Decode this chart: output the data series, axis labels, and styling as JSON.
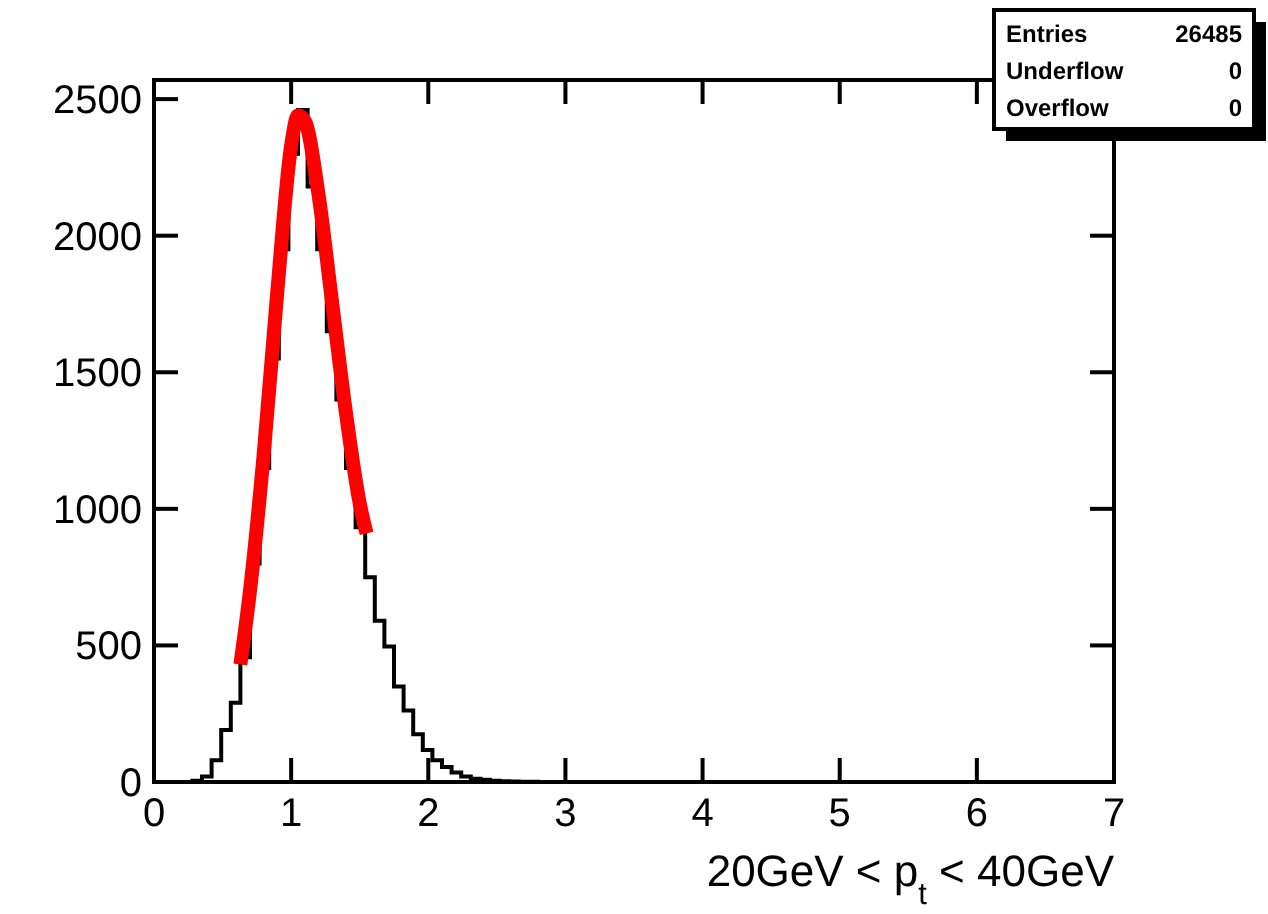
{
  "chart_data": {
    "type": "histogram",
    "xlabel": "20GeV < p$_{t}$ < 40GeV",
    "bins": [
      0,
      0.07,
      0.14,
      0.21,
      0.28,
      0.35,
      0.42,
      0.49,
      0.56,
      0.63,
      0.7,
      0.77,
      0.84,
      0.91,
      0.98,
      1.05,
      1.12,
      1.19,
      1.26,
      1.33,
      1.4,
      1.47,
      1.54,
      1.61,
      1.68,
      1.75,
      1.82,
      1.89,
      1.96,
      2.03,
      2.1,
      2.17,
      2.24,
      2.31,
      2.38,
      2.45,
      2.52,
      2.59,
      2.66,
      2.73,
      2.8,
      2.87
    ],
    "values": [
      0,
      0,
      0,
      0,
      5,
      20,
      80,
      190,
      290,
      457,
      800,
      1150,
      1550,
      1950,
      2300,
      2460,
      2180,
      1950,
      1650,
      1400,
      1150,
      933,
      750,
      590,
      496,
      350,
      262,
      175,
      117,
      80,
      55,
      35,
      20,
      12,
      8,
      5,
      3,
      2,
      1,
      1,
      0
    ],
    "color": "#000000",
    "series": [
      {
        "type": "line",
        "color": "#ff0000",
        "x": [
          0.63,
          0.7,
          0.8,
          0.9,
          1.0,
          1.05,
          1.1,
          1.2,
          1.3,
          1.4,
          1.5,
          1.55
        ],
        "values": [
          430,
          700,
          1200,
          1800,
          2330,
          2440,
          2420,
          2150,
          1750,
          1350,
          1020,
          910
        ]
      }
    ],
    "xlim": [
      0,
      7
    ],
    "ylim": [
      0,
      2570
    ],
    "xticks": [
      0,
      1,
      2,
      3,
      4,
      5,
      6,
      7
    ],
    "yticks": [
      0,
      500,
      1000,
      1500,
      2000,
      2500
    ],
    "grid": false,
    "annotations": [
      "Entries",
      "26485",
      "Underflow",
      "0",
      "Overflow",
      "0"
    ]
  }
}
